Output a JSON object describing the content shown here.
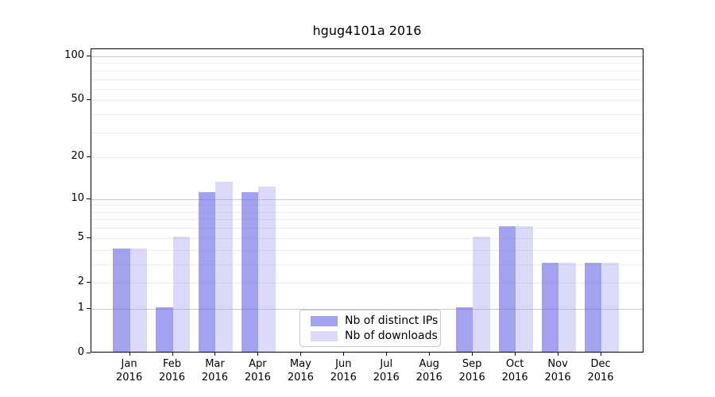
{
  "chart_data": {
    "type": "bar",
    "title": "hgug4101a 2016",
    "categories": [
      "Jan",
      "Feb",
      "Mar",
      "Apr",
      "May",
      "Jun",
      "Jul",
      "Aug",
      "Sep",
      "Oct",
      "Nov",
      "Dec"
    ],
    "x_sublabel": "2016",
    "series": [
      {
        "name": "Nb of distinct IPs",
        "color": "#a2a2f0",
        "fill_rgba": "rgba(112,112,232,0.65)",
        "values": [
          4,
          1,
          11,
          11,
          0,
          0,
          0,
          0,
          1,
          6,
          3,
          3
        ]
      },
      {
        "name": "Nb of downloads",
        "color": "#dadaf8",
        "fill_rgba": "rgba(149,149,235,0.35)",
        "values": [
          4,
          5,
          13,
          12,
          0,
          0,
          0,
          0,
          5,
          6,
          3,
          3
        ]
      }
    ],
    "yscale": "log1p",
    "ylim": [
      0,
      100
    ],
    "yticks": [
      0,
      1,
      2,
      5,
      10,
      20,
      50,
      100
    ],
    "grid": {
      "major_lines": [
        1,
        10,
        100
      ],
      "minor_lines": [
        2,
        3,
        4,
        5,
        6,
        7,
        8,
        9,
        20,
        30,
        40,
        50,
        60,
        70,
        80,
        90
      ],
      "major_color": "#c9c9c9",
      "minor_color": "#eeeeee"
    },
    "legend_position": "lower center",
    "axis_color": "#000000",
    "background_color": "#ffffff"
  }
}
